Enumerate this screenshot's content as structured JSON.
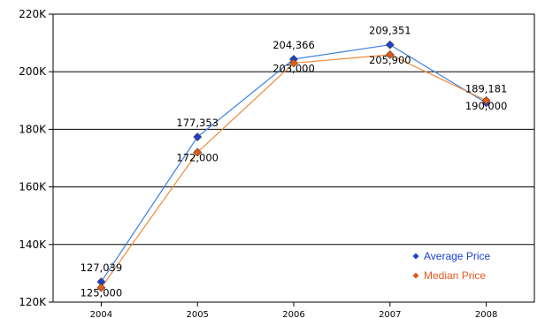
{
  "chart_data": {
    "type": "line",
    "title": "",
    "xlabel": "",
    "ylabel": "",
    "categories": [
      "2004",
      "2005",
      "2006",
      "2007",
      "2008"
    ],
    "ylim": [
      120000,
      220000
    ],
    "yticks": [
      {
        "value": 120000,
        "label": "120K"
      },
      {
        "value": 140000,
        "label": "140K"
      },
      {
        "value": 160000,
        "label": "160K"
      },
      {
        "value": 180000,
        "label": "180K"
      },
      {
        "value": 200000,
        "label": "200K"
      },
      {
        "value": 220000,
        "label": "220K"
      }
    ],
    "grid": "horizontal",
    "legend_position": "bottom-right",
    "series": [
      {
        "name": "Average Price",
        "color": "#1a3fd6",
        "line_color": "#3a7fe0",
        "values": [
          127039,
          177353,
          204366,
          209351,
          189181
        ],
        "labels": [
          "127,039",
          "177,353",
          "204,366",
          "209,351",
          "189,181"
        ]
      },
      {
        "name": "Median Price",
        "color": "#e05a1e",
        "line_color": "#f08a3a",
        "values": [
          125000,
          172000,
          203000,
          205900,
          190000
        ],
        "labels": [
          "125,000",
          "172,000",
          "203,000",
          "205,900",
          "190,000"
        ]
      }
    ]
  }
}
